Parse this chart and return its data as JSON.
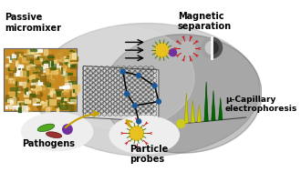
{
  "labels": {
    "passive_micromixer": "Passive\nmicromixer",
    "magnetic_separation": "Magnetic\nseparation",
    "mu_capillary": "μ-Capillary\nelectrophoresis",
    "pathogens": "Pathogens",
    "particle_probes": "Particle\nprobes"
  },
  "bg_color": "#ffffff",
  "text_color": "#000000",
  "node_color": "#1a5a9a",
  "peak_colors_yellow": [
    "#cccc00",
    "#cccc00",
    "#cccc00"
  ],
  "peak_colors_green": [
    "#006600",
    "#006600",
    "#006600"
  ]
}
